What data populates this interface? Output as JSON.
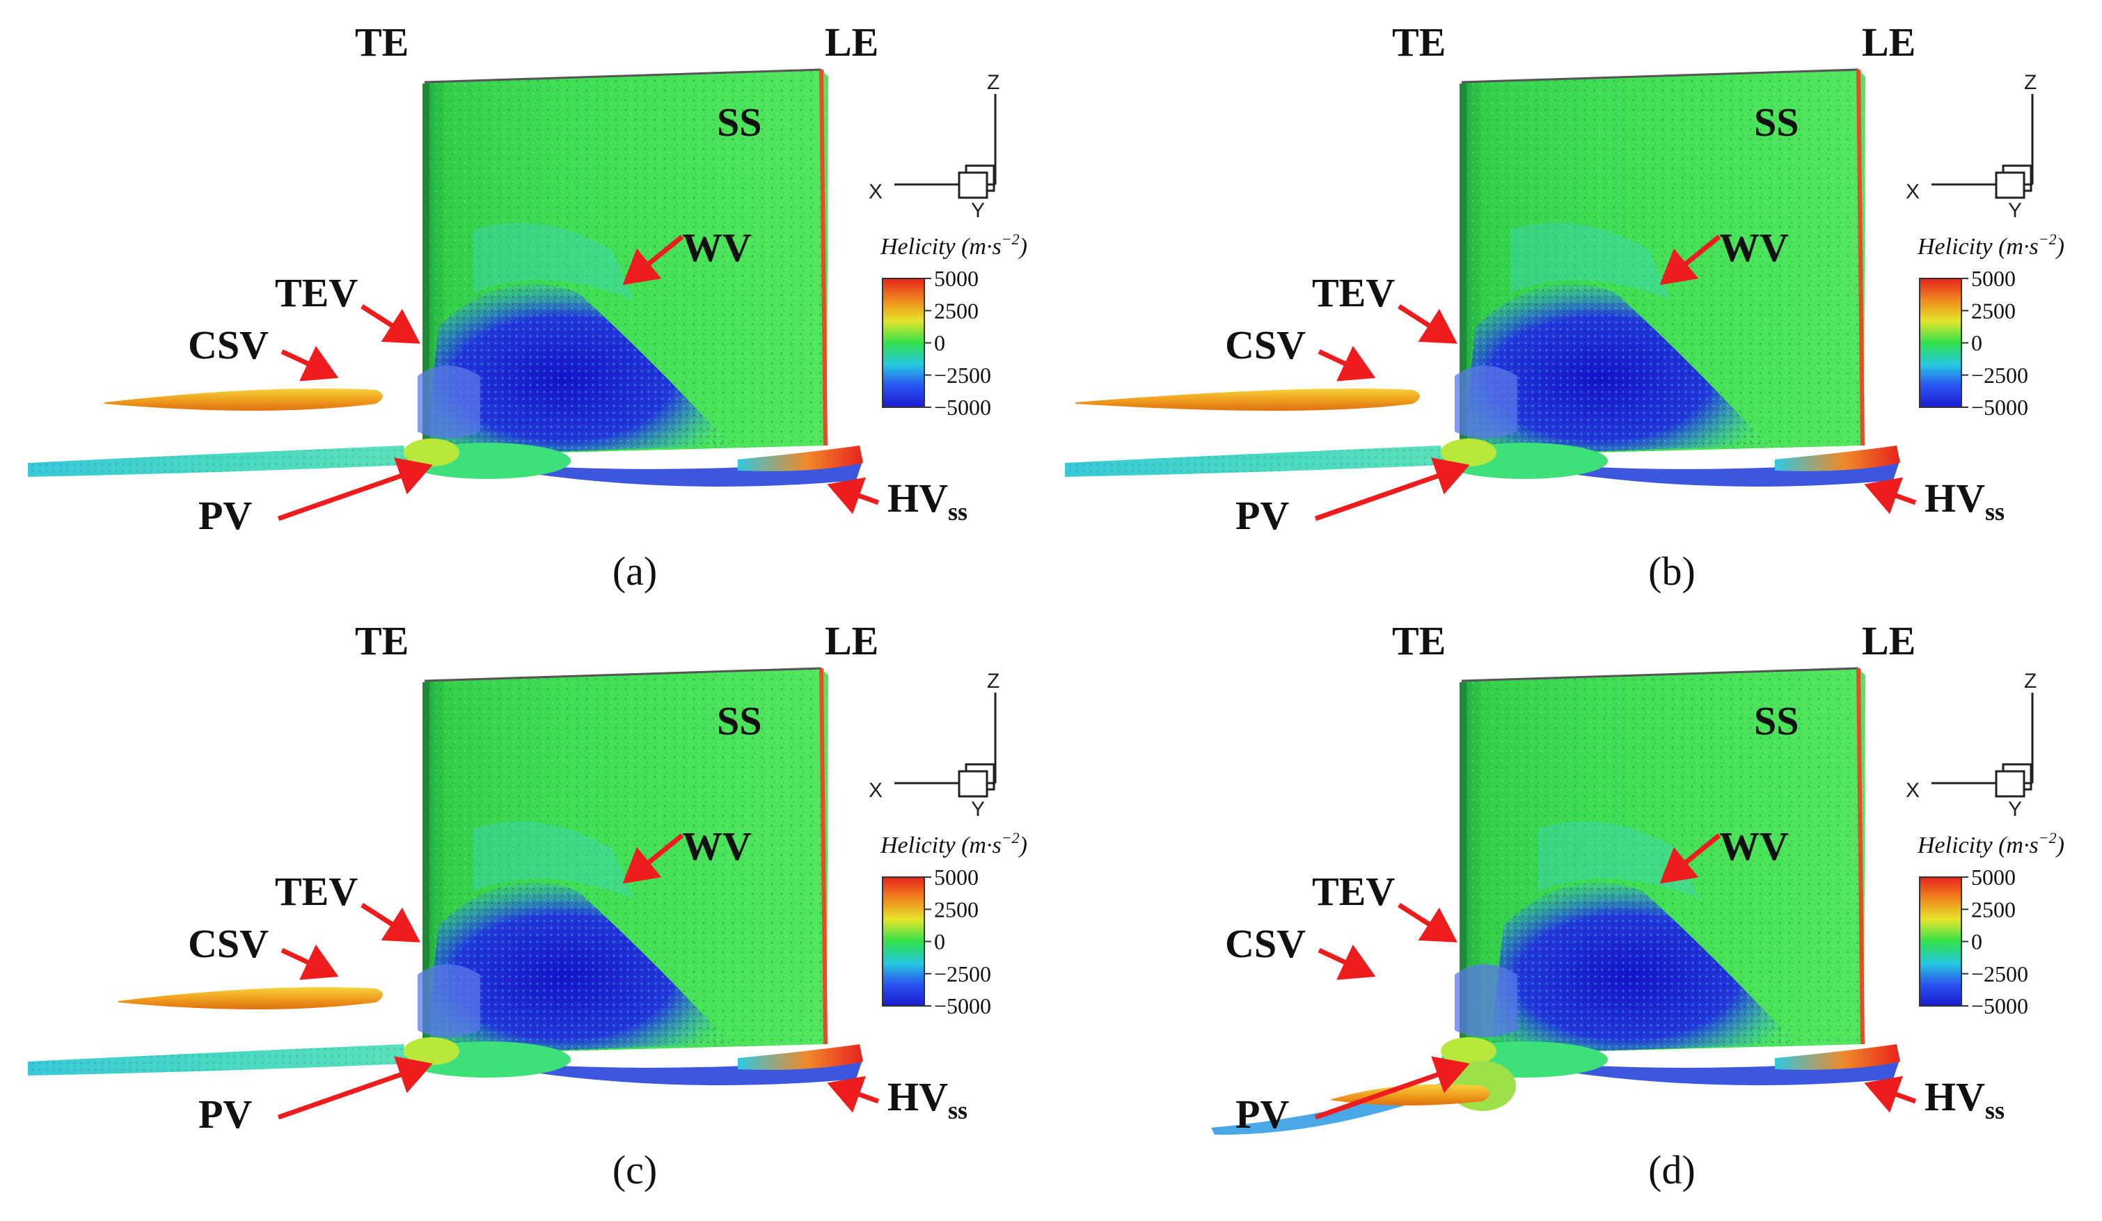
{
  "colors": {
    "arrow": "#ee1c1c",
    "surface_green": "#2ee64a",
    "core_blue": "#1c2fd4",
    "vortex_orange": "#f0a020",
    "vortex_cyan": "#3dd6cf"
  },
  "legend": {
    "title_main": "Helicity (m·s",
    "title_exp": "−2",
    "title_close": ")",
    "ticks": [
      "5000",
      "2500",
      "0",
      "−2500",
      "−5000"
    ],
    "tick_values": [
      5000,
      2500,
      0,
      -2500,
      -5000
    ],
    "gradient": [
      "#e8231c",
      "#f08a1e",
      "#e5e52a",
      "#33e04b",
      "#25c8e0",
      "#2a55f0",
      "#1a1ad0"
    ]
  },
  "axes": {
    "z": "Z",
    "x": "X",
    "y": "Y"
  },
  "labels": {
    "te": "TE",
    "le": "LE",
    "ss": "SS",
    "wv": "WV",
    "tev": "TEV",
    "csv": "CSV",
    "pv": "PV",
    "hv": "HV",
    "hv_sub": "ss"
  },
  "panels": [
    {
      "caption": "(a)"
    },
    {
      "caption": "(b)"
    },
    {
      "caption": "(c)"
    },
    {
      "caption": "(d)"
    }
  ]
}
